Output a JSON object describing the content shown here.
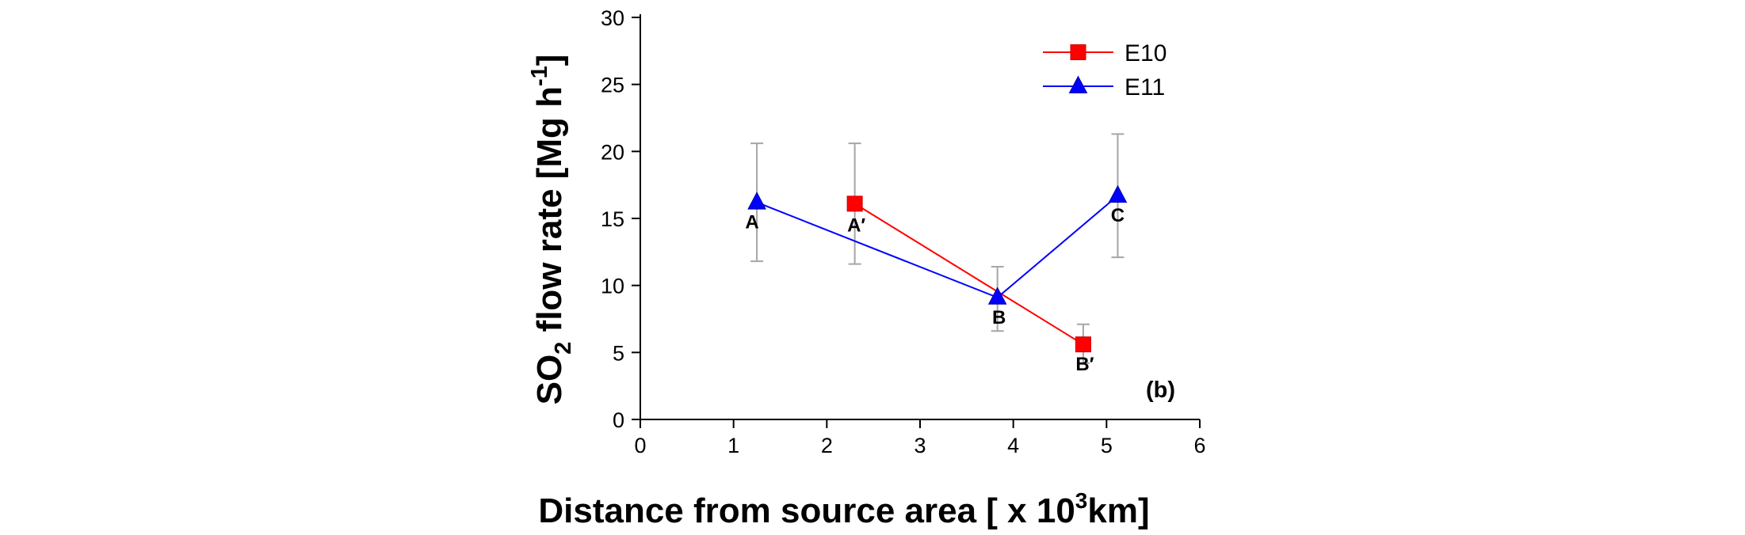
{
  "chart_data": {
    "type": "line",
    "title": "",
    "xlabel": {
      "main": "Distance from source area [ x 10",
      "sup": "3",
      "tail": "km]"
    },
    "ylabel": {
      "prefix": "SO",
      "sub": "2",
      "mid": " flow rate [Mg h",
      "sup": "-1",
      "tail": "]"
    },
    "xlim": [
      0,
      6
    ],
    "ylim": [
      0,
      30
    ],
    "xticks": [
      0,
      1,
      2,
      3,
      4,
      5,
      6
    ],
    "yticks": [
      0,
      5,
      10,
      15,
      20,
      25,
      30
    ],
    "grid": false,
    "legend_position": "top-right",
    "panel_label": "(b)",
    "series": [
      {
        "name": "E10",
        "color": "#ff0000",
        "marker": "square",
        "points": [
          {
            "x": 2.3,
            "y": 16.1,
            "err_low": 11.6,
            "err_high": 20.6,
            "label": "A′"
          },
          {
            "x": 4.75,
            "y": 5.6,
            "err_low": 4.2,
            "err_high": 7.1,
            "label": "B′"
          }
        ]
      },
      {
        "name": "E11",
        "color": "#0000ff",
        "marker": "triangle",
        "points": [
          {
            "x": 1.25,
            "y": 16.2,
            "err_low": 11.8,
            "err_high": 20.6,
            "label": "A"
          },
          {
            "x": 3.83,
            "y": 9.1,
            "err_low": 6.6,
            "err_high": 11.4,
            "label": "B"
          },
          {
            "x": 5.12,
            "y": 16.7,
            "err_low": 12.1,
            "err_high": 21.3,
            "label": "C"
          }
        ]
      }
    ]
  }
}
